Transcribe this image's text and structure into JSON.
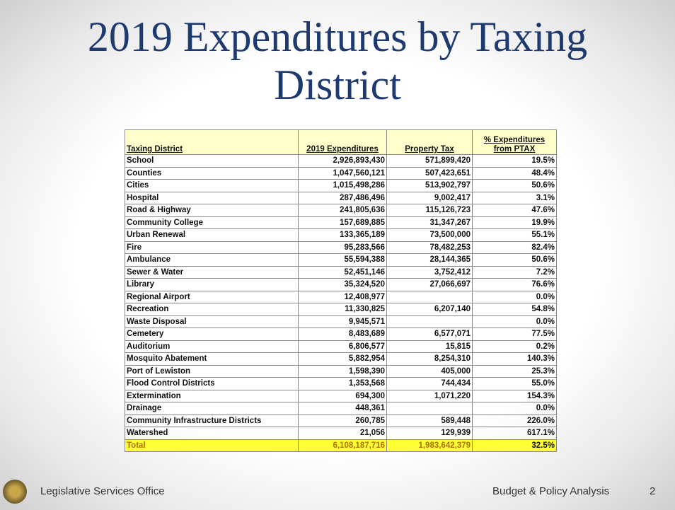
{
  "header": {
    "title": "2019 Expenditures by Taxing District"
  },
  "table": {
    "columns": [
      "Taxing District",
      "2019 Expenditures",
      "Property Tax",
      "% Expenditures from PTAX"
    ],
    "rows": [
      [
        "School",
        "2,926,893,430",
        "571,899,420",
        "19.5%"
      ],
      [
        "Counties",
        "1,047,560,121",
        "507,423,651",
        "48.4%"
      ],
      [
        "Cities",
        "1,015,498,286",
        "513,902,797",
        "50.6%"
      ],
      [
        "Hospital",
        "287,486,496",
        "9,002,417",
        "3.1%"
      ],
      [
        "Road & Highway",
        "241,805,636",
        "115,126,723",
        "47.6%"
      ],
      [
        "Community College",
        "157,689,885",
        "31,347,267",
        "19.9%"
      ],
      [
        "Urban Renewal",
        "133,365,189",
        "73,500,000",
        "55.1%"
      ],
      [
        "Fire",
        "95,283,566",
        "78,482,253",
        "82.4%"
      ],
      [
        "Ambulance",
        "55,594,388",
        "28,144,365",
        "50.6%"
      ],
      [
        "Sewer & Water",
        "52,451,146",
        "3,752,412",
        "7.2%"
      ],
      [
        "Library",
        "35,324,520",
        "27,066,697",
        "76.6%"
      ],
      [
        "Regional Airport",
        "12,408,977",
        null,
        "0.0%"
      ],
      [
        "Recreation",
        "11,330,825",
        "6,207,140",
        "54.8%"
      ],
      [
        "Waste Disposal",
        "9,945,571",
        null,
        "0.0%"
      ],
      [
        "Cemetery",
        "8,483,689",
        "6,577,071",
        "77.5%"
      ],
      [
        "Auditorium",
        "6,806,577",
        "15,815",
        "0.2%"
      ],
      [
        "Mosquito Abatement",
        "5,882,954",
        "8,254,310",
        "140.3%"
      ],
      [
        "Port of Lewiston",
        "1,598,390",
        "405,000",
        "25.3%"
      ],
      [
        "Flood Control Districts",
        "1,353,568",
        "744,434",
        "55.0%"
      ],
      [
        "Extermination",
        "694,300",
        "1,071,220",
        "154.3%"
      ],
      [
        "Drainage",
        "448,361",
        null,
        "0.0%"
      ],
      [
        "Community Infrastructure Districts",
        "260,785",
        "589,448",
        "226.0%"
      ],
      [
        "Watershed",
        "21,056",
        "129,939",
        "617.1%"
      ]
    ],
    "total": [
      "Total",
      "6,108,187,716",
      "1,983,642,379",
      "32.5%"
    ]
  },
  "footer": {
    "left": "Legislative Services Office",
    "right": "Budget & Policy Analysis",
    "page": "2"
  }
}
